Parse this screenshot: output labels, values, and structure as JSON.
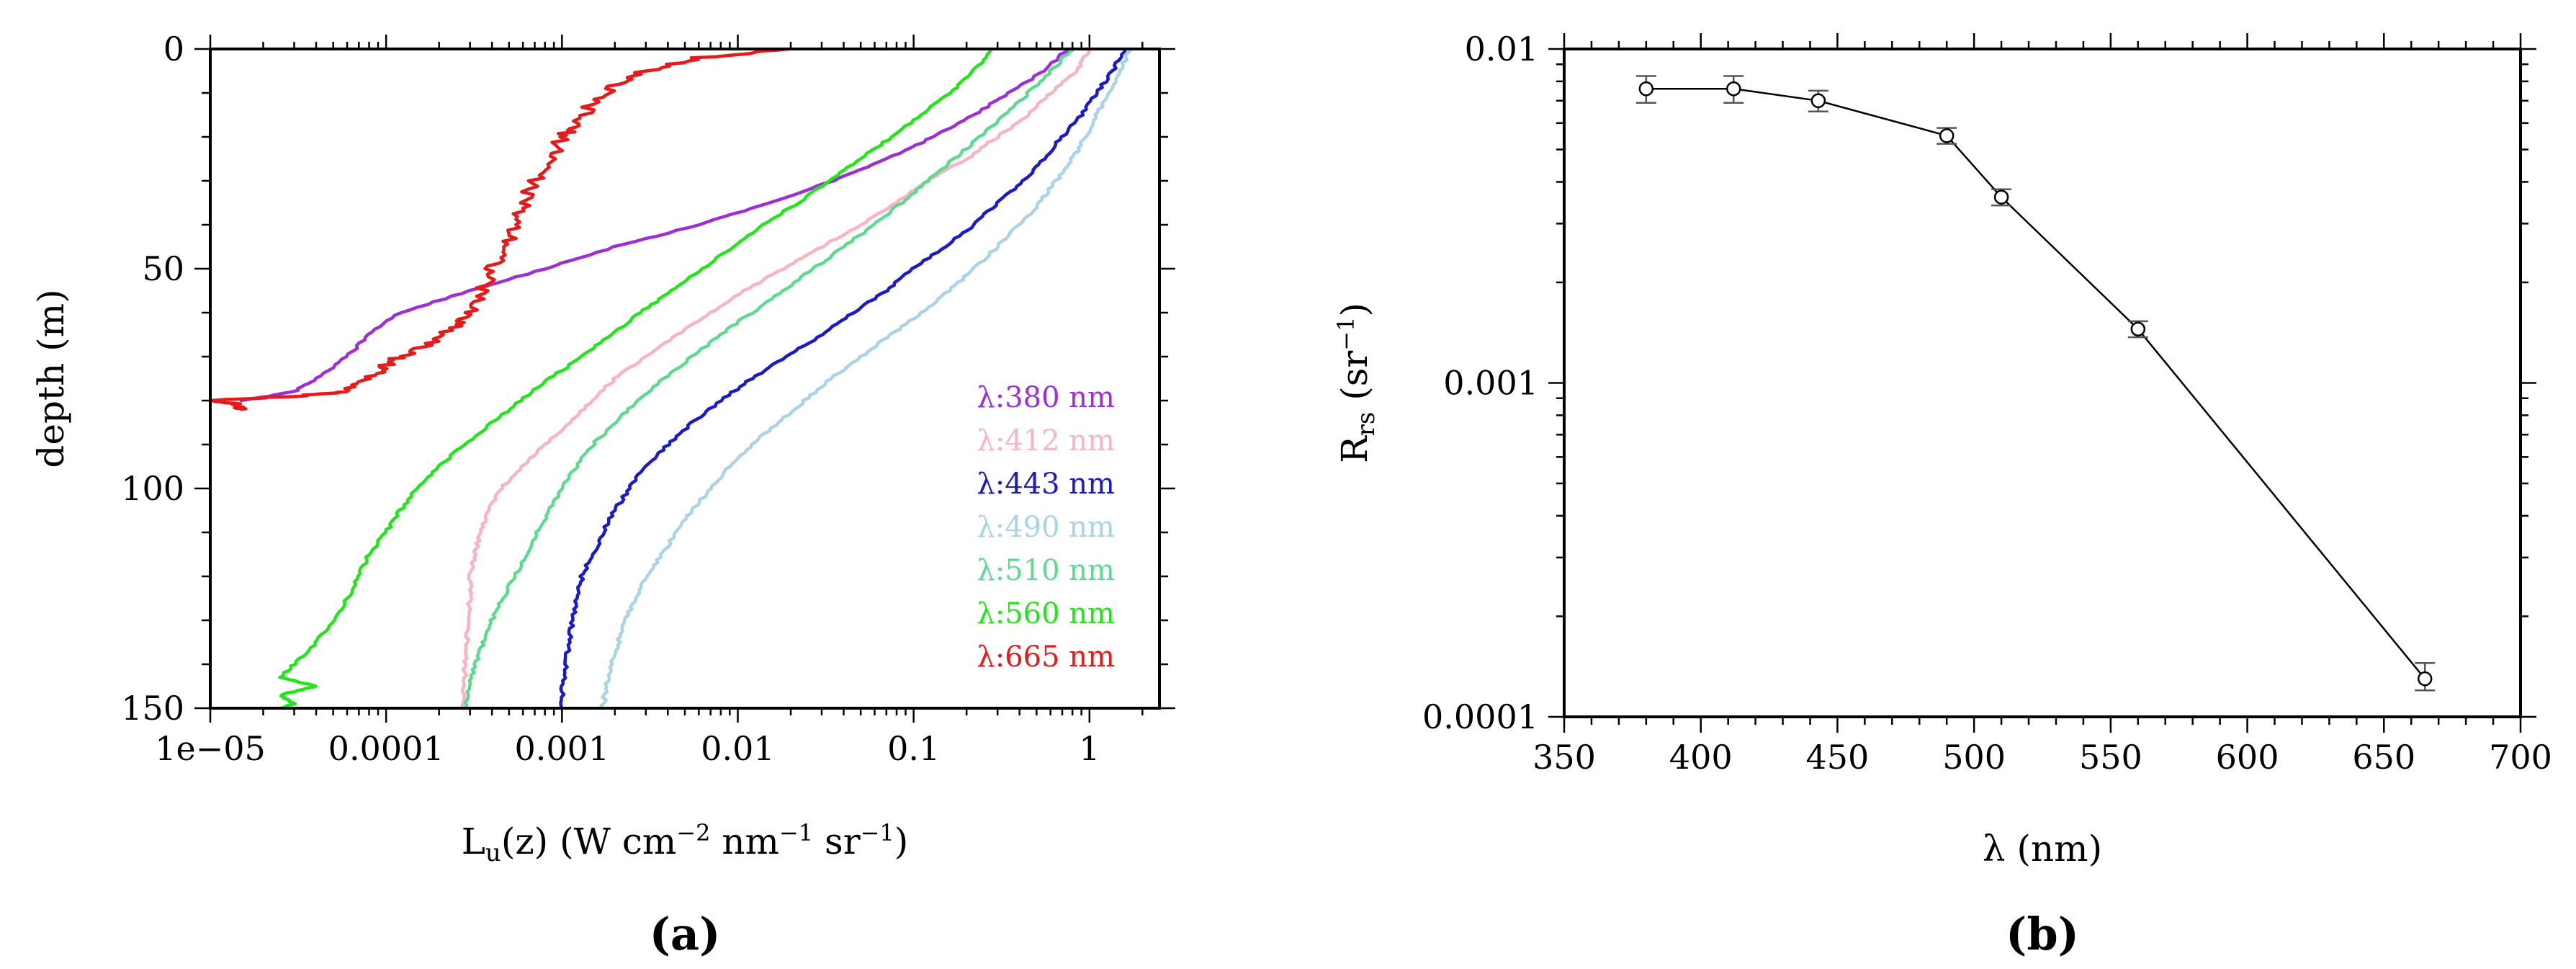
{
  "chart_data": [
    {
      "type": "line",
      "panel_label": "(a)",
      "title": "",
      "xlabel_parts": [
        "L",
        "u",
        "(z) (W cm",
        "−2",
        " nm",
        "−1",
        " sr",
        "−1",
        ")"
      ],
      "ylabel": "depth (m)",
      "xscale": "log",
      "xlim": [
        1e-05,
        2.5
      ],
      "ylim": [
        0,
        150
      ],
      "y_inverted": true,
      "xticks": [
        1e-05,
        0.0001,
        0.001,
        0.01,
        0.1,
        1
      ],
      "xtick_labels": [
        "1e−05",
        "0.0001",
        "0.001",
        "0.01",
        "0.1",
        "1"
      ],
      "yticks": [
        0,
        50,
        100,
        150
      ],
      "ytick_labels": [
        "0",
        "50",
        "100",
        "150"
      ],
      "legend_position": "lower-right",
      "series": [
        {
          "name": "λ:380 nm",
          "color": "#9b30d9",
          "points": [
            [
              0.75,
              0
            ],
            [
              0.55,
              5
            ],
            [
              0.35,
              10
            ],
            [
              0.22,
              15
            ],
            [
              0.13,
              20
            ],
            [
              0.07,
              25
            ],
            [
              0.035,
              30
            ],
            [
              0.015,
              35
            ],
            [
              0.006,
              40
            ],
            [
              0.002,
              45
            ],
            [
              0.0008,
              50
            ],
            [
              0.0003,
              55
            ],
            [
              0.00012,
              60
            ],
            [
              8e-05,
              65
            ],
            [
              6e-05,
              70
            ],
            [
              4e-05,
              75
            ],
            [
              3e-05,
              78
            ],
            [
              1.5e-05,
              80
            ]
          ]
        },
        {
          "name": "λ:412 nm",
          "color": "#f8b4c0",
          "points": [
            [
              1.0,
              0
            ],
            [
              0.85,
              5
            ],
            [
              0.6,
              10
            ],
            [
              0.45,
              15
            ],
            [
              0.3,
              20
            ],
            [
              0.2,
              25
            ],
            [
              0.12,
              30
            ],
            [
              0.08,
              35
            ],
            [
              0.05,
              40
            ],
            [
              0.03,
              45
            ],
            [
              0.018,
              50
            ],
            [
              0.011,
              55
            ],
            [
              0.007,
              60
            ],
            [
              0.0045,
              65
            ],
            [
              0.003,
              70
            ],
            [
              0.002,
              75
            ],
            [
              0.0015,
              80
            ],
            [
              0.0011,
              85
            ],
            [
              0.0008,
              90
            ],
            [
              0.0006,
              95
            ],
            [
              0.00045,
              100
            ],
            [
              0.00038,
              105
            ],
            [
              0.00034,
              110
            ],
            [
              0.00032,
              115
            ],
            [
              0.0003,
              120
            ],
            [
              0.0003,
              125
            ],
            [
              0.00029,
              130
            ],
            [
              0.00029,
              135
            ],
            [
              0.00028,
              140
            ],
            [
              0.00028,
              145
            ],
            [
              0.00027,
              150
            ]
          ]
        },
        {
          "name": "λ:443 nm",
          "color": "#1a1acc",
          "points": [
            [
              1.6,
              0
            ],
            [
              1.35,
              5
            ],
            [
              1.1,
              10
            ],
            [
              0.9,
              15
            ],
            [
              0.7,
              20
            ],
            [
              0.55,
              25
            ],
            [
              0.42,
              30
            ],
            [
              0.3,
              35
            ],
            [
              0.22,
              40
            ],
            [
              0.15,
              45
            ],
            [
              0.1,
              50
            ],
            [
              0.07,
              55
            ],
            [
              0.045,
              60
            ],
            [
              0.03,
              65
            ],
            [
              0.019,
              70
            ],
            [
              0.012,
              75
            ],
            [
              0.008,
              80
            ],
            [
              0.0055,
              85
            ],
            [
              0.004,
              90
            ],
            [
              0.003,
              95
            ],
            [
              0.0024,
              100
            ],
            [
              0.002,
              105
            ],
            [
              0.0017,
              110
            ],
            [
              0.0015,
              115
            ],
            [
              0.0013,
              120
            ],
            [
              0.0012,
              125
            ],
            [
              0.00115,
              130
            ],
            [
              0.0011,
              135
            ],
            [
              0.00105,
              140
            ],
            [
              0.001,
              145
            ],
            [
              0.001,
              150
            ]
          ]
        },
        {
          "name": "λ:490 nm",
          "color": "#a8d4e6",
          "points": [
            [
              1.7,
              0
            ],
            [
              1.5,
              5
            ],
            [
              1.3,
              10
            ],
            [
              1.1,
              15
            ],
            [
              0.95,
              20
            ],
            [
              0.8,
              25
            ],
            [
              0.65,
              30
            ],
            [
              0.52,
              35
            ],
            [
              0.4,
              40
            ],
            [
              0.3,
              45
            ],
            [
              0.22,
              50
            ],
            [
              0.16,
              55
            ],
            [
              0.11,
              60
            ],
            [
              0.075,
              65
            ],
            [
              0.05,
              70
            ],
            [
              0.034,
              75
            ],
            [
              0.024,
              80
            ],
            [
              0.017,
              85
            ],
            [
              0.012,
              90
            ],
            [
              0.009,
              95
            ],
            [
              0.007,
              100
            ],
            [
              0.0055,
              105
            ],
            [
              0.0045,
              110
            ],
            [
              0.0037,
              115
            ],
            [
              0.003,
              120
            ],
            [
              0.0026,
              125
            ],
            [
              0.0023,
              130
            ],
            [
              0.0021,
              135
            ],
            [
              0.0019,
              140
            ],
            [
              0.0018,
              145
            ],
            [
              0.0017,
              150
            ]
          ]
        },
        {
          "name": "λ:510 nm",
          "color": "#5fd98f",
          "points": [
            [
              0.8,
              0
            ],
            [
              0.6,
              5
            ],
            [
              0.45,
              10
            ],
            [
              0.33,
              15
            ],
            [
              0.24,
              20
            ],
            [
              0.17,
              25
            ],
            [
              0.12,
              30
            ],
            [
              0.085,
              35
            ],
            [
              0.06,
              40
            ],
            [
              0.04,
              45
            ],
            [
              0.027,
              50
            ],
            [
              0.018,
              55
            ],
            [
              0.012,
              60
            ],
            [
              0.008,
              65
            ],
            [
              0.0055,
              70
            ],
            [
              0.0038,
              75
            ],
            [
              0.0027,
              80
            ],
            [
              0.002,
              85
            ],
            [
              0.0015,
              90
            ],
            [
              0.0012,
              95
            ],
            [
              0.001,
              100
            ],
            [
              0.00085,
              105
            ],
            [
              0.00072,
              110
            ],
            [
              0.00062,
              115
            ],
            [
              0.00054,
              120
            ],
            [
              0.00046,
              125
            ],
            [
              0.0004,
              130
            ],
            [
              0.00036,
              135
            ],
            [
              0.00032,
              140
            ],
            [
              0.0003,
              145
            ],
            [
              0.00028,
              150
            ]
          ]
        },
        {
          "name": "λ:560 nm",
          "color": "#22e61a",
          "points": [
            [
              0.28,
              0
            ],
            [
              0.22,
              5
            ],
            [
              0.16,
              10
            ],
            [
              0.11,
              15
            ],
            [
              0.075,
              20
            ],
            [
              0.05,
              25
            ],
            [
              0.033,
              30
            ],
            [
              0.022,
              35
            ],
            [
              0.014,
              40
            ],
            [
              0.0095,
              45
            ],
            [
              0.0063,
              50
            ],
            [
              0.0042,
              55
            ],
            [
              0.0028,
              60
            ],
            [
              0.0019,
              65
            ],
            [
              0.0013,
              70
            ],
            [
              0.00085,
              75
            ],
            [
              0.00058,
              80
            ],
            [
              0.0004,
              85
            ],
            [
              0.00028,
              90
            ],
            [
              0.0002,
              95
            ],
            [
              0.00015,
              100
            ],
            [
              0.00012,
              105
            ],
            [
              0.0001,
              110
            ],
            [
              8e-05,
              115
            ],
            [
              7e-05,
              120
            ],
            [
              6e-05,
              125
            ],
            [
              5e-05,
              130
            ],
            [
              4e-05,
              135
            ],
            [
              3e-05,
              140
            ],
            [
              2.5e-05,
              143
            ],
            [
              4e-05,
              145
            ],
            [
              2.5e-05,
              147
            ],
            [
              3e-05,
              149
            ],
            [
              2.5e-05,
              150
            ]
          ]
        },
        {
          "name": "λ:665 nm",
          "color": "#e61a1a",
          "points": [
            [
              0.02,
              0
            ],
            [
              0.006,
              2
            ],
            [
              0.003,
              5
            ],
            [
              0.002,
              8
            ],
            [
              0.0015,
              12
            ],
            [
              0.0012,
              17
            ],
            [
              0.001,
              20
            ],
            [
              0.0009,
              25
            ],
            [
              0.0007,
              30
            ],
            [
              0.0006,
              35
            ],
            [
              0.00055,
              40
            ],
            [
              0.0005,
              45
            ],
            [
              0.0004,
              50
            ],
            [
              0.00035,
              55
            ],
            [
              0.0003,
              60
            ],
            [
              0.00025,
              63
            ],
            [
              0.00018,
              67
            ],
            [
              0.00012,
              70
            ],
            [
              0.0001,
              72
            ],
            [
              8e-05,
              75
            ],
            [
              6e-05,
              78
            ],
            [
              3e-05,
              79
            ],
            [
              1e-05,
              80
            ],
            [
              1.5e-05,
              81
            ],
            [
              1.5e-05,
              82
            ]
          ]
        }
      ]
    },
    {
      "type": "line",
      "panel_label": "(b)",
      "title": "",
      "xlabel": "λ (nm)",
      "ylabel_parts": [
        "R",
        "rs",
        " (sr",
        "−1",
        ")"
      ],
      "xscale": "linear",
      "yscale": "log",
      "xlim": [
        350,
        700
      ],
      "ylim": [
        0.0001,
        0.01
      ],
      "xticks": [
        350,
        400,
        450,
        500,
        550,
        600,
        650,
        700
      ],
      "xtick_labels": [
        "350",
        "400",
        "450",
        "500",
        "550",
        "600",
        "650",
        "700"
      ],
      "yticks": [
        0.0001,
        0.001,
        0.01
      ],
      "ytick_labels": [
        "0.0001",
        "0.001",
        "0.01"
      ],
      "series": [
        {
          "name": "Rrs",
          "x": [
            380,
            412,
            443,
            490,
            510,
            560,
            665
          ],
          "values": [
            0.0076,
            0.0076,
            0.007,
            0.0055,
            0.0036,
            0.00145,
            0.00013
          ],
          "err_low": [
            0.0069,
            0.0069,
            0.0065,
            0.0052,
            0.0034,
            0.00137,
            0.00012
          ],
          "err_high": [
            0.0083,
            0.0083,
            0.0075,
            0.0058,
            0.0038,
            0.00153,
            0.000145
          ]
        }
      ]
    }
  ]
}
